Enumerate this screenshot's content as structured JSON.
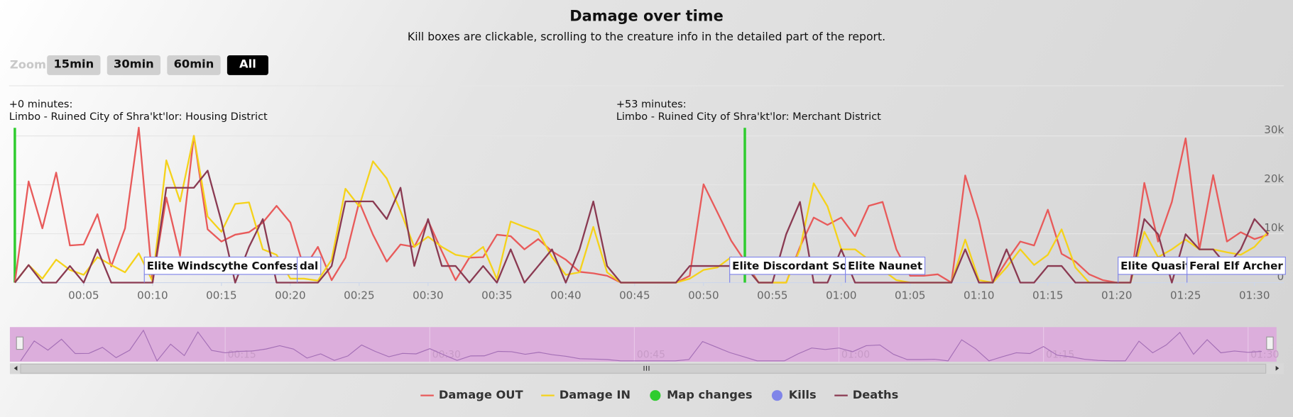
{
  "chart_data": {
    "type": "line",
    "title": "Damage over time",
    "subtitle": "Kill boxes are clickable, scrolling to the creature info in the detailed part of the report.",
    "zoom": {
      "label": "Zoom",
      "buttons": [
        "15min",
        "30min",
        "60min",
        "All"
      ],
      "active": 3
    },
    "x": [
      0,
      1,
      2,
      3,
      4,
      5,
      6,
      7,
      8,
      9,
      10,
      11,
      12,
      13,
      14,
      15,
      16,
      17,
      18,
      19,
      20,
      21,
      22,
      23,
      24,
      25,
      26,
      27,
      28,
      29,
      30,
      31,
      32,
      33,
      34,
      35,
      36,
      37,
      38,
      39,
      40,
      41,
      42,
      43,
      44,
      45,
      46,
      47,
      48,
      49,
      50,
      51,
      52,
      53,
      54,
      55,
      56,
      57,
      58,
      59,
      60,
      61,
      62,
      63,
      64,
      65,
      66,
      67,
      68,
      69,
      70,
      71,
      72,
      73,
      74,
      75,
      76,
      77,
      78,
      79,
      80,
      81,
      82,
      83,
      84,
      85,
      86,
      87,
      88,
      89,
      90,
      91
    ],
    "xlim": [
      0,
      91.6
    ],
    "xticks": [
      {
        "value": 5,
        "label": "00:05"
      },
      {
        "value": 10,
        "label": "00:10"
      },
      {
        "value": 15,
        "label": "00:15"
      },
      {
        "value": 20,
        "label": "00:20"
      },
      {
        "value": 25,
        "label": "00:25"
      },
      {
        "value": 30,
        "label": "00:30"
      },
      {
        "value": 35,
        "label": "00:35"
      },
      {
        "value": 40,
        "label": "00:40"
      },
      {
        "value": 45,
        "label": "00:45"
      },
      {
        "value": 50,
        "label": "00:50"
      },
      {
        "value": 55,
        "label": "00:55"
      },
      {
        "value": 60,
        "label": "01:00"
      },
      {
        "value": 65,
        "label": "01:05"
      },
      {
        "value": 70,
        "label": "01:10"
      },
      {
        "value": 75,
        "label": "01:15"
      },
      {
        "value": 80,
        "label": "01:20"
      },
      {
        "value": 85,
        "label": "01:25"
      },
      {
        "value": 90,
        "label": "01:30"
      }
    ],
    "ylim": [
      0,
      32500
    ],
    "yticks": [
      0,
      {
        "value": 10000,
        "label": "10k"
      },
      {
        "value": 20000,
        "label": "20k"
      },
      {
        "value": 30000,
        "label": "30k"
      }
    ],
    "grid": true,
    "series": [
      {
        "name": "Damage OUT",
        "color": "#e85a5a",
        "values": [
          0,
          20700,
          11100,
          22500,
          7600,
          7800,
          14000,
          3300,
          11100,
          31700,
          0,
          17400,
          5500,
          30000,
          10900,
          8400,
          9800,
          10300,
          12300,
          15700,
          12300,
          2900,
          7300,
          500,
          5100,
          16500,
          9800,
          4300,
          7800,
          7300,
          12700,
          6400,
          500,
          5100,
          5200,
          9800,
          9500,
          6800,
          8900,
          6400,
          4700,
          2200,
          1900,
          1400,
          0,
          0,
          0,
          0,
          0,
          1400,
          20100,
          14400,
          8600,
          4400,
          0,
          0,
          0,
          7300,
          13300,
          11800,
          13300,
          9500,
          15700,
          16500,
          6800,
          1400,
          1400,
          1700,
          0,
          21900,
          12700,
          0,
          4400,
          8400,
          7600,
          14900,
          5900,
          4300,
          1700,
          500,
          0,
          0,
          20400,
          8400,
          16500,
          29500,
          6800,
          22000,
          8400,
          10300,
          8900,
          9800
        ]
      },
      {
        "name": "Damage IN",
        "color": "#f5d21a",
        "values": [
          0,
          3600,
          800,
          4700,
          2600,
          1600,
          5200,
          3600,
          2100,
          6000,
          300,
          25000,
          16600,
          30000,
          13500,
          10400,
          16100,
          16400,
          6800,
          5700,
          800,
          800,
          400,
          4700,
          19200,
          15600,
          24800,
          21300,
          14600,
          7300,
          9400,
          7300,
          5700,
          5200,
          7300,
          700,
          12500,
          11400,
          10400,
          5200,
          1600,
          2100,
          11400,
          2100,
          0,
          0,
          0,
          0,
          0,
          800,
          2600,
          3100,
          5200,
          3600,
          0,
          0,
          0,
          6800,
          20300,
          15600,
          6800,
          6800,
          4700,
          2600,
          500,
          0,
          0,
          0,
          0,
          8800,
          500,
          0,
          3100,
          6800,
          3600,
          5700,
          10900,
          3100,
          0,
          0,
          0,
          0,
          10400,
          5200,
          6800,
          8800,
          6800,
          6800,
          6200,
          5700,
          7300,
          10400
        ]
      },
      {
        "name": "Deaths",
        "color": "#8a3a52",
        "values": [
          0,
          3600,
          0,
          0,
          3400,
          0,
          6800,
          0,
          0,
          0,
          0,
          19400,
          19400,
          19400,
          22900,
          12500,
          0,
          7300,
          13000,
          0,
          0,
          0,
          0,
          3400,
          16600,
          16600,
          16600,
          13000,
          19400,
          3400,
          13000,
          3400,
          3400,
          0,
          3400,
          0,
          6800,
          0,
          3400,
          6800,
          0,
          6800,
          16600,
          3400,
          0,
          0,
          0,
          0,
          0,
          3400,
          3400,
          3400,
          3400,
          3400,
          0,
          0,
          9900,
          16500,
          0,
          0,
          6800,
          0,
          0,
          0,
          0,
          0,
          0,
          0,
          0,
          6800,
          0,
          0,
          6800,
          0,
          0,
          3400,
          3400,
          0,
          0,
          0,
          0,
          0,
          13000,
          9900,
          0,
          9900,
          6800,
          6800,
          3400,
          6800,
          13000,
          9900
        ]
      }
    ],
    "map_changes": {
      "name": "Map changes",
      "color": "#2ecc2e",
      "events": [
        {
          "x": 0,
          "label": "+0 minutes:",
          "place": "Limbo - Ruined City of Shra'kt'lor: Housing District"
        },
        {
          "x": 53,
          "label": "+53 minutes:",
          "place": "Limbo - Ruined City of Shra'kt'lor: Merchant District"
        }
      ]
    },
    "kills": {
      "name": "Kills",
      "color": "#8085e9",
      "events": [
        {
          "x": 9.4,
          "label": "Elite Windscythe Confessor"
        },
        {
          "x": 20.5,
          "label": "dal"
        },
        {
          "x": 51.9,
          "label": "Elite Discordant Soul"
        },
        {
          "x": 60.3,
          "label": "Elite Naunet"
        },
        {
          "x": 80.1,
          "label": "Elite Quasit"
        },
        {
          "x": 85.1,
          "label": "Feral Elf Archer"
        }
      ]
    }
  }
}
